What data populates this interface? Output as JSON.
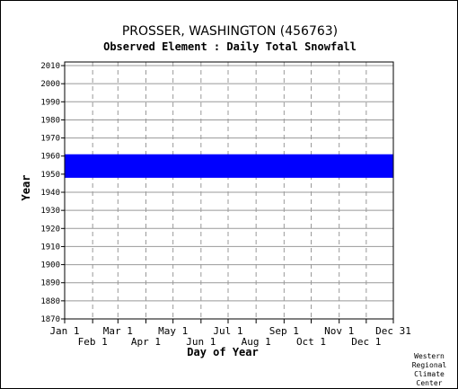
{
  "chart_data": {
    "type": "scatter",
    "title": "PROSSER, WASHINGTON   (456763)",
    "subtitle": "Observed Element : Daily Total Snowfall",
    "xlabel": "Day of Year",
    "ylabel": "Year",
    "ylim": [
      1870,
      2012
    ],
    "yticks": [
      "2010",
      "2000",
      "1990",
      "1980",
      "1970",
      "1960",
      "1950",
      "1940",
      "1930",
      "1920",
      "1910",
      "1900",
      "1890",
      "1880",
      "1870"
    ],
    "ytick_values": [
      2010,
      2000,
      1990,
      1980,
      1970,
      1960,
      1950,
      1940,
      1930,
      1920,
      1910,
      1900,
      1890,
      1880,
      1870
    ],
    "xlim": [
      1,
      365
    ],
    "xticks_top_row": [
      "Jan 1",
      "Mar 1",
      "May 1",
      "Jul 1",
      "Sep 1",
      "Nov 1",
      "Dec 31"
    ],
    "xticks_top_values": [
      1,
      60,
      121,
      182,
      244,
      305,
      365
    ],
    "xticks_bottom_row": [
      "Feb 1",
      "Apr 1",
      "Jun 1",
      "Aug 1",
      "Oct 1",
      "Dec 1"
    ],
    "xticks_bottom_values": [
      32,
      91,
      152,
      213,
      274,
      335
    ],
    "grid": true,
    "series": [
      {
        "color": "#0000ff",
        "year_range": [
          1948,
          1961
        ],
        "day_range": [
          1,
          365
        ]
      }
    ],
    "credit": [
      "Western",
      "Regional",
      "Climate",
      "Center"
    ]
  }
}
